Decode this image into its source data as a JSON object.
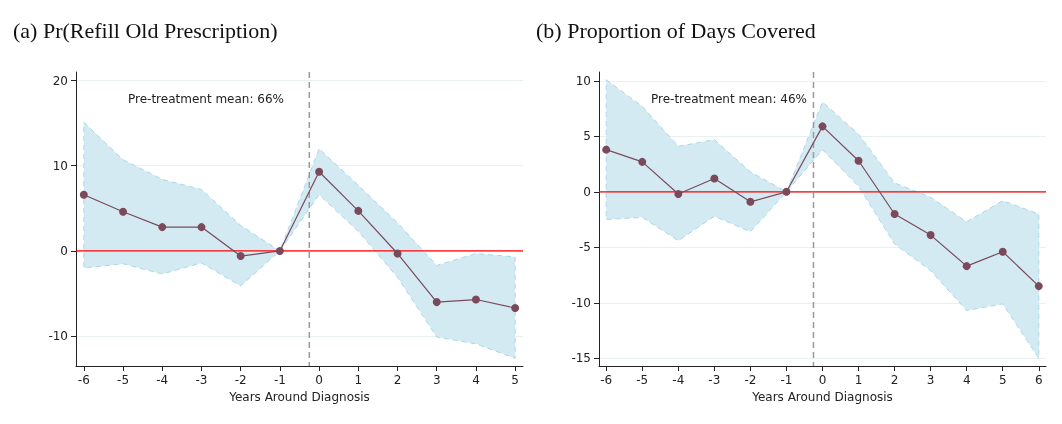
{
  "chart_data": [
    {
      "type": "line",
      "title": "(a) Pr(Refill Old Prescription)",
      "xlabel": "Years Around Diagnosis",
      "annotations": [
        "Pre-treatment mean: 66%"
      ],
      "x": [
        -6,
        -5,
        -4,
        -3,
        -2,
        -1,
        0,
        1,
        2,
        3,
        4,
        5
      ],
      "series": [
        {
          "color": "#7b4a5a",
          "values": [
            6.6,
            4.6,
            2.8,
            2.8,
            -0.6,
            0,
            9.3,
            4.7,
            -0.3,
            -6.0,
            -5.7,
            -6.7
          ],
          "lower": [
            -2.0,
            -1.5,
            -2.7,
            -1.4,
            -4.1,
            0,
            6.6,
            2.3,
            -3.1,
            -10.1,
            -10.9,
            -12.6
          ],
          "upper": [
            15.1,
            10.7,
            8.4,
            7.2,
            3.0,
            0,
            12.0,
            7.7,
            3.3,
            -1.7,
            -0.3,
            -0.7
          ]
        }
      ],
      "xlim": [
        -6.2,
        5.2
      ],
      "xticks": [
        -6,
        -5,
        -4,
        -3,
        -2,
        -1,
        0,
        1,
        2,
        3,
        4,
        5
      ],
      "ylim": [
        -13.5,
        21
      ],
      "yticks": [
        -10,
        0,
        10,
        20
      ],
      "grid": "y",
      "marker": "circle",
      "line_style": "solid",
      "ref_lines": [
        {
          "axis": "y",
          "value": 0,
          "color": "#ff0000",
          "line_style": "solid"
        },
        {
          "axis": "x",
          "value": -0.25,
          "color": "#999999",
          "line_style": "dashed"
        }
      ]
    },
    {
      "type": "line",
      "title": "(b) Proportion of Days Covered",
      "xlabel": "Years Around Diagnosis",
      "annotations": [
        "Pre-treatment mean: 46%"
      ],
      "x": [
        -6,
        -5,
        -4,
        -3,
        -2,
        -1,
        0,
        1,
        2,
        3,
        4,
        5,
        6
      ],
      "series": [
        {
          "color": "#7b4a5a",
          "values": [
            3.8,
            2.7,
            -0.2,
            1.2,
            -0.9,
            0,
            5.9,
            2.8,
            -2.0,
            -3.9,
            -6.7,
            -5.4,
            -8.5
          ],
          "lower": [
            -2.5,
            -2.3,
            -4.4,
            -2.2,
            -3.6,
            0,
            3.8,
            0.5,
            -4.7,
            -7.1,
            -10.7,
            -10.1,
            -15.0
          ],
          "upper": [
            10.1,
            7.7,
            4.1,
            4.7,
            1.8,
            0,
            8.1,
            5.2,
            0.8,
            -0.5,
            -2.7,
            -0.8,
            -2.0
          ]
        }
      ],
      "xlim": [
        -6.2,
        6.2
      ],
      "xticks": [
        -6,
        -5,
        -4,
        -3,
        -2,
        -1,
        0,
        1,
        2,
        3,
        4,
        5,
        6
      ],
      "ylim": [
        -15.7,
        10.8
      ],
      "yticks": [
        -15,
        -10,
        -5,
        0,
        5,
        10
      ],
      "grid": "y",
      "marker": "circle",
      "line_style": "solid",
      "ref_lines": [
        {
          "axis": "y",
          "value": 0,
          "color": "#ff0000",
          "line_style": "solid"
        },
        {
          "axis": "x",
          "value": -0.25,
          "color": "#999999",
          "line_style": "dashed"
        }
      ]
    }
  ]
}
